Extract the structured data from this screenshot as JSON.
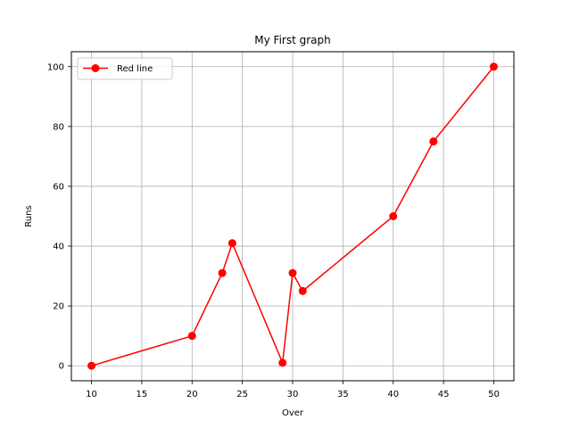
{
  "chart_data": {
    "type": "line",
    "title": "My First graph",
    "xlabel": "Over",
    "ylabel": "Runs",
    "xlim": [
      8,
      52
    ],
    "ylim": [
      -5,
      105
    ],
    "xticks": [
      10,
      15,
      20,
      25,
      30,
      35,
      40,
      45,
      50
    ],
    "yticks": [
      0,
      20,
      40,
      60,
      80,
      100
    ],
    "grid": true,
    "legend_position": "top-left",
    "series": [
      {
        "name": "Red line",
        "color": "#ff0000",
        "marker": "circle",
        "x": [
          10,
          20,
          23,
          24,
          29,
          30,
          31,
          40,
          44,
          50
        ],
        "y": [
          0,
          10,
          31,
          41,
          1,
          31,
          25,
          50,
          75,
          100
        ]
      }
    ]
  }
}
